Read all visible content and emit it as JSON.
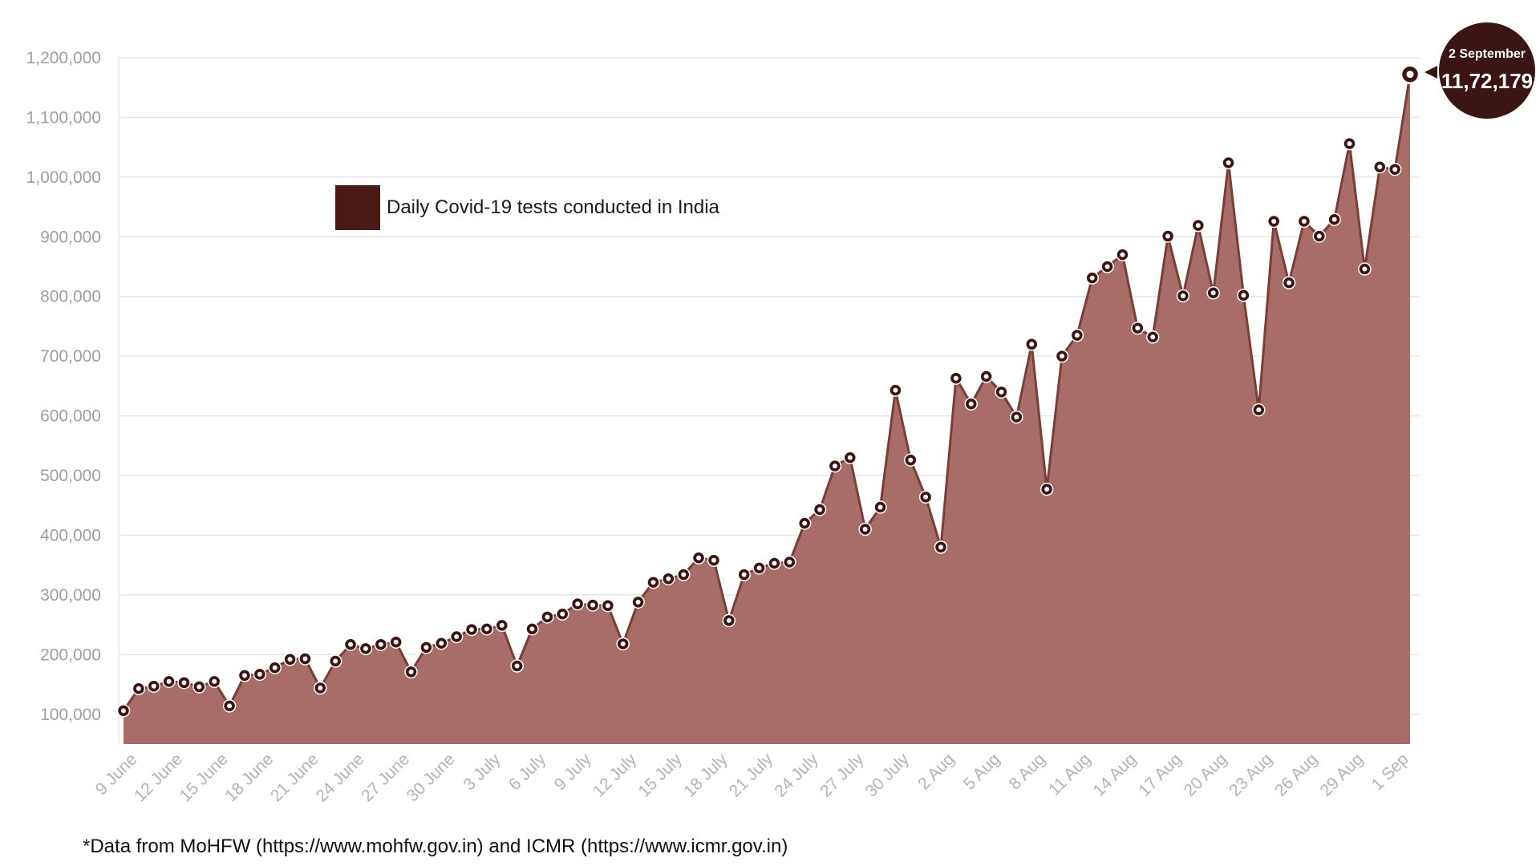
{
  "colors": {
    "area_fill": "#a76d66",
    "line": "#7a3e37",
    "marker": "#3b1513",
    "legend_swatch": "#4a1a17",
    "callout_bg": "#3b1513"
  },
  "chart_data": {
    "type": "area",
    "title": "",
    "legend": [
      "Daily Covid-19 tests conducted in India"
    ],
    "legend_position": "top-left",
    "ylim": [
      50000,
      1200000
    ],
    "yticks": [
      100000,
      200000,
      300000,
      400000,
      500000,
      600000,
      700000,
      800000,
      900000,
      1000000,
      1100000,
      1200000
    ],
    "ytick_labels": [
      "100,000",
      "200,000",
      "300,000",
      "400,000",
      "500,000",
      "600,000",
      "700,000",
      "800,000",
      "900,000",
      "1,000,000",
      "1,100,000",
      "1,200,000"
    ],
    "xtick_labels": [
      "9 June",
      "12 June",
      "15 June",
      "18 June",
      "21 June",
      "24 June",
      "27 June",
      "30 June",
      "3 July",
      "6 July",
      "9 July",
      "12 July",
      "15 July",
      "18 July",
      "21 July",
      "24 July",
      "27 July",
      "30 July",
      "2 Aug",
      "5 Aug",
      "8 Aug",
      "11 Aug",
      "14 Aug",
      "17 Aug",
      "20 Aug",
      "23 Aug",
      "26 Aug",
      "29 Aug",
      "1 Sep"
    ],
    "xtick_every": 3,
    "grid": true,
    "series": [
      {
        "name": "Daily Covid-19 tests conducted in India",
        "values": [
          106000,
          143000,
          147000,
          155000,
          153000,
          146000,
          155000,
          114000,
          165000,
          167000,
          178000,
          192000,
          193000,
          144000,
          189000,
          217000,
          210000,
          217000,
          221000,
          171000,
          212000,
          219000,
          230000,
          242000,
          243000,
          249000,
          181000,
          243000,
          263000,
          268000,
          285000,
          283000,
          282000,
          218000,
          288000,
          321000,
          327000,
          334000,
          362000,
          358000,
          257000,
          334000,
          345000,
          353000,
          355000,
          420000,
          443000,
          516000,
          530000,
          410000,
          447000,
          643000,
          526000,
          464000,
          380000,
          663000,
          620000,
          666000,
          640000,
          598000,
          720000,
          477000,
          700000,
          735000,
          831000,
          850000,
          870000,
          747000,
          732000,
          901000,
          801000,
          919000,
          806000,
          1024000,
          802000,
          610000,
          926000,
          823000,
          926000,
          901000,
          929000,
          1056000,
          846000,
          1017000,
          1013000,
          1172179
        ]
      }
    ],
    "annotation": {
      "label": "2 September",
      "value": "11,72,179"
    }
  },
  "footnote": "*Data from MoHFW (https://www.mohfw.gov.in) and ICMR (https://www.icmr.gov.in)"
}
